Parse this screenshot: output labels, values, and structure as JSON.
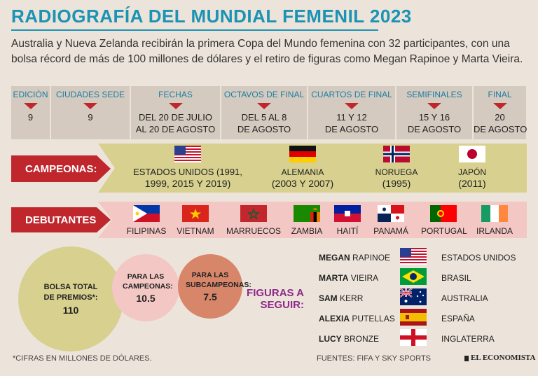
{
  "title": "RADIOGRAFÍA DEL MUNDIAL FEMENIL 2023",
  "subtitle": "Australia y Nueva Zelanda recibirán la primera Copa del Mundo femenina con 32 participantes, con una bolsa récord de más de 100 millones de dólares y el retiro de figuras como Megan Rapinoe y Marta Vieira.",
  "facts": [
    {
      "label": "EDICIÓN",
      "line1": "9",
      "line2": ""
    },
    {
      "label": "CIUDADES SEDE",
      "line1": "9",
      "line2": ""
    },
    {
      "label": "FECHAS",
      "line1": "DEL 20 DE JULIO",
      "line2": "AL 20 DE AGOSTO"
    },
    {
      "label": "OCTAVOS DE FINAL",
      "line1": "DEL 5 AL 8",
      "line2": "DE AGOSTO"
    },
    {
      "label": "CUARTOS DE FINAL",
      "line1": "11 Y 12",
      "line2": "DE AGOSTO"
    },
    {
      "label": "SEMIFINALES",
      "line1": "15 Y 16",
      "line2": "DE AGOSTO"
    },
    {
      "label": "FINAL",
      "line1": "20",
      "line2": "DE AGOSTO"
    }
  ],
  "champions_label": "CAMPEONAS:",
  "champions": [
    {
      "name": "ESTADOS UNIDOS (1991,",
      "years": "1999, 2015 Y 2019)",
      "flag": "usa-flag"
    },
    {
      "name": "ALEMANIA",
      "years": "(2003 Y 2007)",
      "flag": "germany-flag"
    },
    {
      "name": "NORUEGA",
      "years": "(1995)",
      "flag": "norway-flag"
    },
    {
      "name": "JAPÓN",
      "years": "(2011)",
      "flag": "japan-flag"
    }
  ],
  "debutants_label": "DEBUTANTES:",
  "debutants": [
    {
      "name": "FILIPINAS",
      "flag": "philippines-flag"
    },
    {
      "name": "VIETNAM",
      "flag": "vietnam-flag"
    },
    {
      "name": "MARRUECOS",
      "flag": "morocco-flag"
    },
    {
      "name": "ZAMBIA",
      "flag": "zambia-flag"
    },
    {
      "name": "HAITÍ",
      "flag": "haiti-flag"
    },
    {
      "name": "PANAMÁ",
      "flag": "panama-flag"
    },
    {
      "name": "PORTUGAL",
      "flag": "portugal-flag"
    },
    {
      "name": "IRLANDA",
      "flag": "ireland-flag"
    }
  ],
  "prizes": [
    {
      "label": "BOLSA TOTAL DE PREMIOS*:",
      "amount": "110"
    },
    {
      "label": "PARA LAS CAMPEONAS:",
      "amount": "10.5"
    },
    {
      "label": "PARA LAS SUBCAMPEONAS:",
      "amount": "7.5"
    }
  ],
  "figures_title_1": "FIGURAS A",
  "figures_title_2": "SEGUIR:",
  "figures": [
    {
      "first": "MEGAN",
      "last": "RAPINOE",
      "country": "ESTADOS UNIDOS",
      "flag": "usa-flag"
    },
    {
      "first": "MARTA",
      "last": "VIEIRA",
      "country": "BRASIL",
      "flag": "brazil-flag"
    },
    {
      "first": "SAM",
      "last": "KERR",
      "country": "AUSTRALIA",
      "flag": "australia-flag"
    },
    {
      "first": "ALEXIA",
      "last": "PUTELLAS",
      "country": "ESPAÑA",
      "flag": "spain-flag"
    },
    {
      "first": "LUCY",
      "last": "BRONZE",
      "country": "INGLATERRA",
      "flag": "england-flag"
    }
  ],
  "footnote": "*CIFRAS EN MILLONES DE DÓLARES.",
  "sources": "FUENTES: FIFA Y SKY SPORTS",
  "brand": "EL ECONOMISTA",
  "colors": {
    "accent": "#1a93b4",
    "red": "#c0272d",
    "khaki": "#d7d08e",
    "pink": "#f3c7c3",
    "bg": "#ece4da"
  }
}
